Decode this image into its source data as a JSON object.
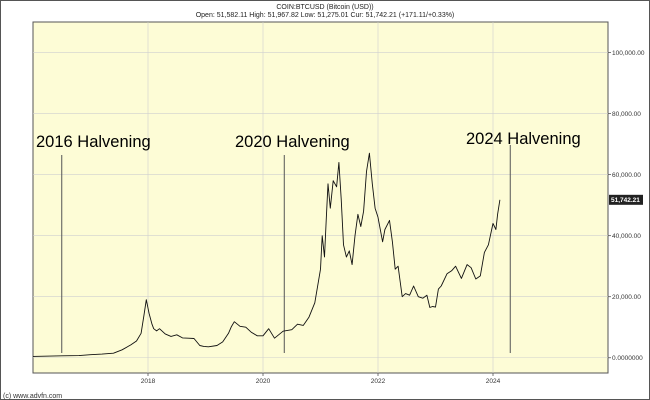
{
  "header": {
    "title": "COIN:BTCUSD (Bitcoin (USD))",
    "quote": "Open: 51,582.11 High: 51,967.82 Low: 51,275.01 Cur: 51,742.21 (+171.11/+0.33%)"
  },
  "footer": {
    "copyright": "(c) www.advfn.com"
  },
  "colors": {
    "plot_background": "#fdfcd6",
    "price_line": "#111111",
    "grid": "#cfcfcf",
    "current_price_badge": "#222222"
  },
  "chart_data": {
    "type": "line",
    "title": "COIN:BTCUSD (Bitcoin (USD))",
    "xlabel": "",
    "ylabel": "",
    "grid": true,
    "x_ticks": [
      "2018",
      "2020",
      "2022",
      "2024"
    ],
    "x_tick_values": [
      2018.0,
      2020.0,
      2022.0,
      2024.0
    ],
    "xlim": [
      2016.0,
      2026.0
    ],
    "y_ticks": [
      "0.0000000",
      "20,000.00",
      "40,000.00",
      "60,000.00",
      "80,000.00",
      "100,000.00"
    ],
    "y_tick_values": [
      0,
      20000,
      40000,
      60000,
      80000,
      100000
    ],
    "ylim": [
      -5000,
      110000
    ],
    "current_value": 51742.21,
    "current_label": "51,742.21",
    "annotations": [
      {
        "label": "2016 Halvening",
        "x": 2016.5
      },
      {
        "label": "2020 Halvening",
        "x": 2020.37
      },
      {
        "label": "2024 Halvening",
        "x": 2024.3
      }
    ],
    "series": [
      {
        "x": [
          2016.0,
          2016.5,
          2016.8,
          2017.0,
          2017.2,
          2017.4,
          2017.55,
          2017.7,
          2017.8,
          2017.88,
          2017.93,
          2017.97,
          2018.02,
          2018.07,
          2018.1,
          2018.15,
          2018.2,
          2018.3,
          2018.4,
          2018.5,
          2018.6,
          2018.7,
          2018.8,
          2018.9,
          2018.97,
          2019.05,
          2019.2,
          2019.3,
          2019.4,
          2019.45,
          2019.5,
          2019.6,
          2019.7,
          2019.8,
          2019.9,
          2020.0,
          2020.1,
          2020.2,
          2020.35,
          2020.5,
          2020.6,
          2020.7,
          2020.8,
          2020.9,
          2021.0,
          2021.03,
          2021.07,
          2021.1,
          2021.13,
          2021.17,
          2021.22,
          2021.28,
          2021.32,
          2021.36,
          2021.4,
          2021.45,
          2021.5,
          2021.55,
          2021.6,
          2021.65,
          2021.7,
          2021.75,
          2021.8,
          2021.85,
          2021.9,
          2021.95,
          2022.0,
          2022.08,
          2022.12,
          2022.2,
          2022.25,
          2022.3,
          2022.35,
          2022.42,
          2022.48,
          2022.55,
          2022.62,
          2022.7,
          2022.78,
          2022.85,
          2022.9,
          2022.95,
          2023.0,
          2023.05,
          2023.1,
          2023.2,
          2023.28,
          2023.35,
          2023.45,
          2023.55,
          2023.62,
          2023.7,
          2023.78,
          2023.85,
          2023.92,
          2024.0,
          2024.05,
          2024.08,
          2024.12
        ],
        "values": [
          430,
          650,
          700,
          980,
          1200,
          1500,
          2600,
          4200,
          5500,
          8000,
          14000,
          19000,
          14500,
          11000,
          9500,
          8800,
          9500,
          7800,
          7000,
          7500,
          6500,
          6400,
          6300,
          4000,
          3700,
          3600,
          4000,
          5200,
          8000,
          10200,
          11800,
          10300,
          10000,
          8300,
          7200,
          7200,
          9500,
          6400,
          8700,
          9200,
          11000,
          10600,
          13300,
          18000,
          29000,
          40000,
          33000,
          45000,
          57000,
          49000,
          58000,
          56000,
          64000,
          52000,
          37000,
          33000,
          35000,
          30500,
          40000,
          47000,
          43000,
          48000,
          61000,
          67000,
          57000,
          49000,
          46000,
          38000,
          42000,
          45000,
          38000,
          29000,
          30000,
          20000,
          21000,
          20500,
          23500,
          20000,
          19500,
          20500,
          16500,
          16800,
          16600,
          22500,
          23500,
          27500,
          28500,
          30000,
          26000,
          30500,
          29500,
          25800,
          26800,
          34500,
          37000,
          44000,
          42000,
          47000,
          51742
        ]
      }
    ]
  }
}
